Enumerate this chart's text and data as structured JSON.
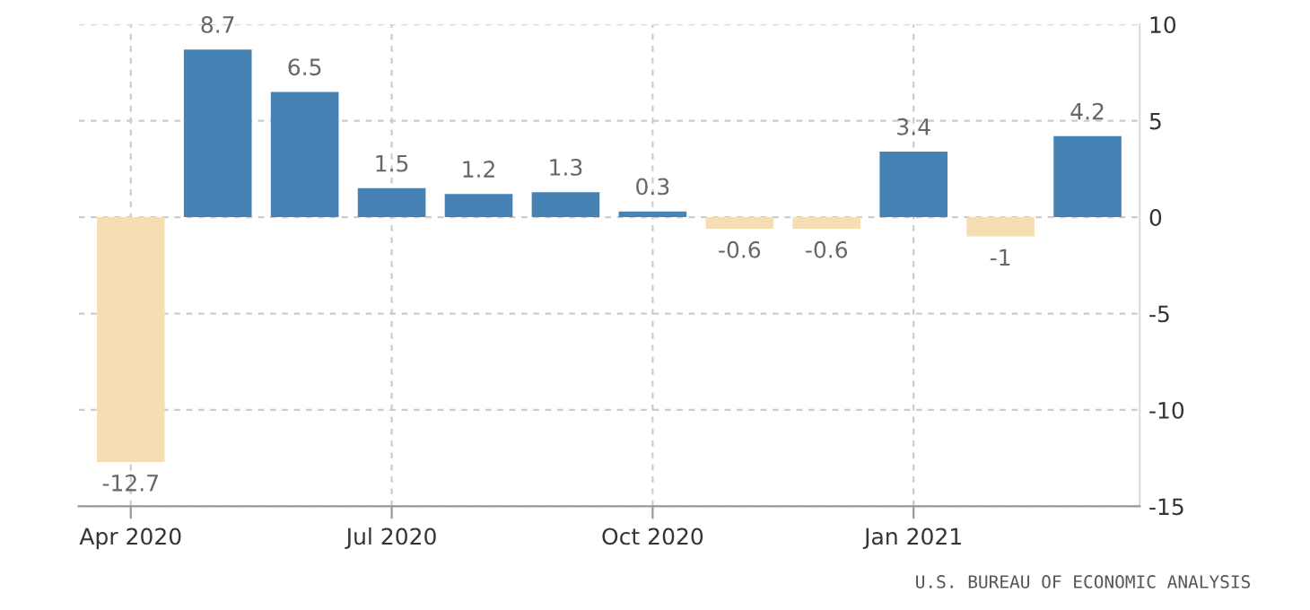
{
  "chart_data": {
    "type": "bar",
    "categories": [
      "Apr 2020",
      null,
      null,
      "Jul 2020",
      null,
      null,
      "Oct 2020",
      null,
      null,
      "Jan 2021",
      null,
      null
    ],
    "values": [
      -12.7,
      8.7,
      6.5,
      1.5,
      1.2,
      1.3,
      0.3,
      -0.6,
      -0.6,
      3.4,
      -1,
      4.2
    ],
    "colors": [
      "#f5deb3",
      "#4682b4",
      "#4682b4",
      "#4682b4",
      "#4682b4",
      "#4682b4",
      "#4682b4",
      "#f5deb3",
      "#f5deb3",
      "#4682b4",
      "#f5deb3",
      "#4682b4"
    ],
    "ylim": [
      -15,
      10
    ],
    "yticks": [
      -15,
      -10,
      -5,
      0,
      5,
      10
    ],
    "grid": true,
    "data_labels": true,
    "annotations": [
      "U.S. BUREAU OF ECONOMIC ANALYSIS"
    ]
  }
}
